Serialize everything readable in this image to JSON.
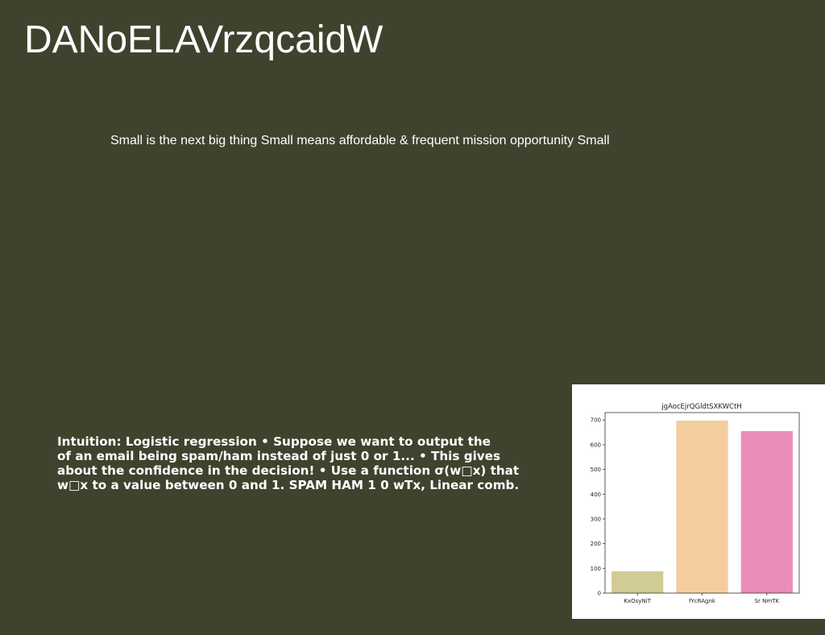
{
  "slide": {
    "title": "DANoELAVrzqcaidW",
    "subtitle": "Small is the next big thing Small means affordable & frequent mission opportunity Small",
    "body_lines": [
      "Intuition: Logistic regression • Suppose we want to output the",
      "of an email being spam/ham instead of just 0 or 1... • This gives",
      "about the confidence in the decision! • Use a function σ(w□x) that",
      "w□x to a value between 0 and 1. SPAM HAM 1 0 wTx, Linear comb."
    ]
  },
  "colors": {
    "background": "#3f432e",
    "bars": [
      "#d1cb95",
      "#f3cd9e",
      "#ea8db9"
    ]
  },
  "chart_data": {
    "type": "bar",
    "title": "jgAocEjrQGldtSXKWCtH",
    "categories": [
      "KxOsyNiT",
      "fYcRAgnk",
      "Sr NmTK"
    ],
    "values": [
      88,
      698,
      655
    ],
    "ylim": [
      0,
      730
    ],
    "yticks": [
      0,
      100,
      200,
      300,
      400,
      500,
      600,
      700
    ],
    "xlabel": "",
    "ylabel": "",
    "grid": false
  }
}
